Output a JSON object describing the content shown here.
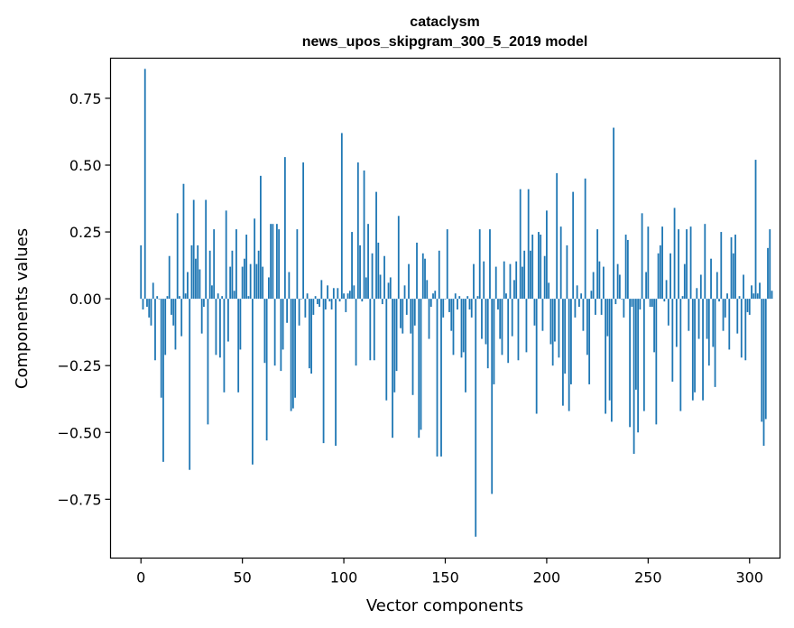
{
  "chart_data": {
    "type": "bar",
    "title": "cataclysm",
    "subtitle": "news_upos_skipgram_300_5_2019 model",
    "xlabel": "Vector components",
    "ylabel": "Components values",
    "xlim": [
      -15,
      315
    ],
    "ylim": [
      -0.97,
      0.9
    ],
    "xticks": [
      0,
      50,
      100,
      150,
      200,
      250,
      300
    ],
    "xtick_labels": [
      "0",
      "50",
      "100",
      "150",
      "200",
      "250",
      "300"
    ],
    "yticks": [
      -0.75,
      -0.5,
      -0.25,
      0.0,
      0.25,
      0.5,
      0.75
    ],
    "ytick_labels": [
      "−0.75",
      "−0.50",
      "−0.25",
      "0.00",
      "0.25",
      "0.50",
      "0.75"
    ],
    "bar_color": "#1f77b4",
    "grid": false,
    "values": [
      0.2,
      -0.04,
      0.86,
      -0.03,
      -0.07,
      -0.1,
      0.06,
      -0.23,
      0.01,
      0.0,
      -0.37,
      -0.61,
      -0.21,
      0.01,
      0.16,
      -0.06,
      -0.1,
      -0.19,
      0.32,
      0.01,
      -0.14,
      0.43,
      0.02,
      0.1,
      -0.64,
      0.2,
      0.37,
      0.15,
      0.2,
      0.11,
      -0.13,
      -0.03,
      0.37,
      -0.47,
      0.18,
      0.05,
      0.26,
      -0.21,
      0.02,
      -0.22,
      0.01,
      -0.35,
      0.33,
      -0.16,
      0.12,
      0.18,
      0.03,
      0.26,
      -0.35,
      -0.19,
      0.12,
      0.15,
      0.24,
      0.01,
      0.13,
      -0.62,
      0.3,
      0.13,
      0.18,
      0.46,
      0.12,
      -0.24,
      -0.53,
      0.08,
      0.28,
      0.28,
      -0.25,
      0.28,
      0.26,
      -0.27,
      -0.19,
      0.53,
      -0.09,
      0.1,
      -0.42,
      -0.41,
      -0.37,
      0.26,
      -0.1,
      0.0,
      0.51,
      -0.07,
      0.02,
      -0.26,
      -0.28,
      -0.06,
      0.01,
      -0.02,
      -0.03,
      0.07,
      -0.54,
      -0.04,
      0.05,
      -0.01,
      -0.04,
      0.04,
      -0.55,
      0.04,
      -0.01,
      0.62,
      0.02,
      -0.05,
      0.02,
      0.03,
      0.25,
      0.05,
      -0.25,
      0.51,
      0.2,
      -0.01,
      0.48,
      0.08,
      0.28,
      -0.23,
      0.17,
      -0.23,
      0.4,
      0.21,
      0.09,
      -0.02,
      0.16,
      -0.38,
      0.06,
      0.08,
      -0.52,
      -0.35,
      -0.27,
      0.31,
      -0.11,
      -0.13,
      0.05,
      -0.06,
      0.13,
      -0.13,
      -0.36,
      -0.1,
      0.21,
      -0.52,
      -0.49,
      0.17,
      0.15,
      0.07,
      -0.15,
      -0.03,
      0.02,
      0.03,
      -0.59,
      0.18,
      -0.59,
      -0.07,
      0.0,
      0.26,
      -0.05,
      -0.12,
      -0.21,
      0.02,
      -0.04,
      0.01,
      -0.22,
      -0.2,
      -0.35,
      0.01,
      -0.04,
      -0.07,
      0.13,
      -0.89,
      0.01,
      0.26,
      -0.15,
      0.14,
      -0.17,
      -0.26,
      0.26,
      -0.73,
      -0.32,
      0.12,
      -0.04,
      -0.15,
      -0.21,
      0.14,
      0.02,
      -0.24,
      0.13,
      -0.14,
      0.07,
      0.14,
      -0.23,
      0.41,
      0.12,
      0.18,
      -0.2,
      0.41,
      0.18,
      0.24,
      -0.1,
      -0.43,
      0.25,
      0.24,
      -0.12,
      0.16,
      0.33,
      0.06,
      -0.17,
      -0.25,
      -0.16,
      0.47,
      -0.22,
      0.27,
      -0.4,
      -0.28,
      0.2,
      -0.42,
      -0.32,
      0.4,
      -0.07,
      0.05,
      -0.03,
      0.02,
      -0.12,
      0.45,
      -0.21,
      -0.32,
      0.03,
      0.1,
      -0.06,
      0.26,
      0.14,
      -0.06,
      0.12,
      -0.43,
      -0.14,
      -0.38,
      -0.46,
      0.64,
      -0.02,
      0.13,
      0.09,
      0.0,
      -0.07,
      0.24,
      0.22,
      -0.48,
      -0.03,
      -0.58,
      -0.34,
      -0.5,
      -0.04,
      0.32,
      -0.42,
      0.1,
      0.27,
      -0.03,
      -0.03,
      -0.2,
      -0.47,
      0.17,
      0.2,
      0.27,
      -0.01,
      0.07,
      -0.1,
      0.17,
      -0.31,
      0.34,
      -0.18,
      0.26,
      -0.42,
      0.01,
      0.13,
      0.26,
      -0.12,
      0.27,
      -0.38,
      -0.35,
      0.04,
      -0.15,
      0.09,
      -0.38,
      0.28,
      -0.15,
      -0.25,
      0.15,
      -0.18,
      -0.33,
      0.1,
      -0.01,
      0.25,
      -0.12,
      -0.07,
      0.02,
      -0.19,
      0.23,
      0.17,
      0.24,
      -0.13,
      0.01,
      -0.22,
      0.09,
      -0.23,
      -0.05,
      -0.06,
      0.05,
      0.02,
      0.52,
      0.02,
      0.06,
      -0.46,
      -0.55,
      -0.45,
      0.19,
      0.26,
      0.03
    ]
  }
}
